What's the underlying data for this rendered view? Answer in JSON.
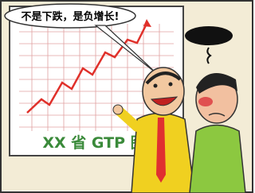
{
  "speech": "不是下跌，是负增长!",
  "board": {
    "label": "XX 省 GTP 图"
  }
}
